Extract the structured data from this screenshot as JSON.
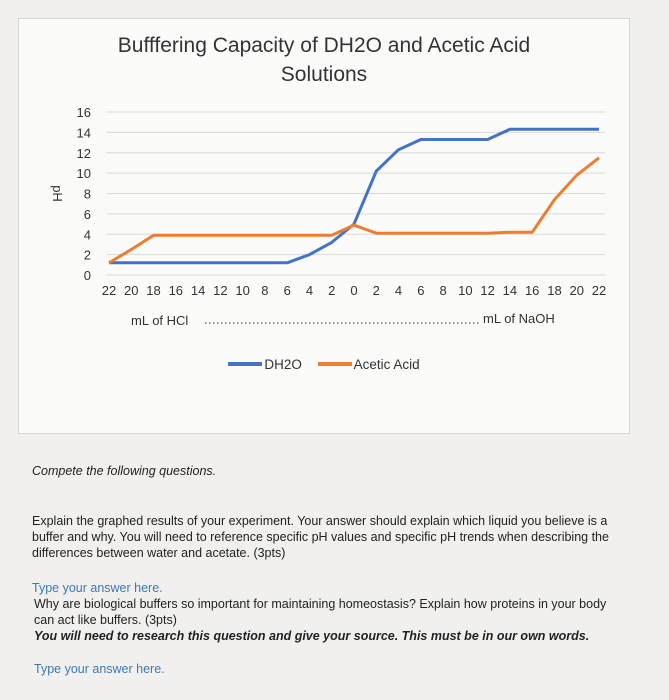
{
  "chart_data": {
    "type": "line",
    "title": [
      "Bufffering Capacity of DH2O and Acetic Acid",
      "Solutions"
    ],
    "ylabel": "pH",
    "ylim": [
      0,
      16
    ],
    "yticks": [
      0,
      2,
      4,
      6,
      8,
      10,
      12,
      14,
      16
    ],
    "grid": true,
    "x_tick_labels": [
      "22",
      "20",
      "18",
      "16",
      "14",
      "12",
      "10",
      "8",
      "6",
      "4",
      "2",
      "0",
      "2",
      "4",
      "6",
      "8",
      "10",
      "12",
      "14",
      "16",
      "18",
      "20",
      "22"
    ],
    "xlabel_left": "mL of HCl",
    "xlabel_right": "mL of NaOH",
    "legend_position": "bottom",
    "series": [
      {
        "name": "DH2O",
        "color": "#4472c4",
        "values": [
          1.2,
          1.2,
          1.2,
          1.2,
          1.2,
          1.2,
          1.2,
          1.2,
          1.2,
          2.0,
          3.2,
          5.0,
          10.2,
          12.3,
          13.3,
          13.3,
          13.3,
          13.3,
          14.3,
          14.3,
          14.3,
          14.3,
          14.3
        ]
      },
      {
        "name": "Acetic Acid",
        "color": "#ed7d31",
        "values": [
          1.2,
          2.5,
          3.9,
          3.9,
          3.9,
          3.9,
          3.9,
          3.9,
          3.9,
          3.9,
          3.9,
          4.9,
          4.1,
          4.1,
          4.1,
          4.1,
          4.1,
          4.1,
          4.2,
          4.2,
          7.4,
          9.8,
          11.5
        ]
      }
    ]
  },
  "questions": {
    "intro": "Compete the following questions.",
    "q1": "Explain the graphed results of your experiment. Your answer should explain which liquid you believe is a buffer and why. You will need to reference specific pH values and specific pH trends when describing the differences between water and acetate. (3pts)",
    "a1": "Type your answer here.",
    "q2": "Why are biological buffers so important for maintaining homeostasis? Explain how proteins in your body can act like buffers. (3pts)",
    "q2_note": "You will need to research this question and give your source. This must be in our own words.",
    "a2": "Type your answer here."
  }
}
